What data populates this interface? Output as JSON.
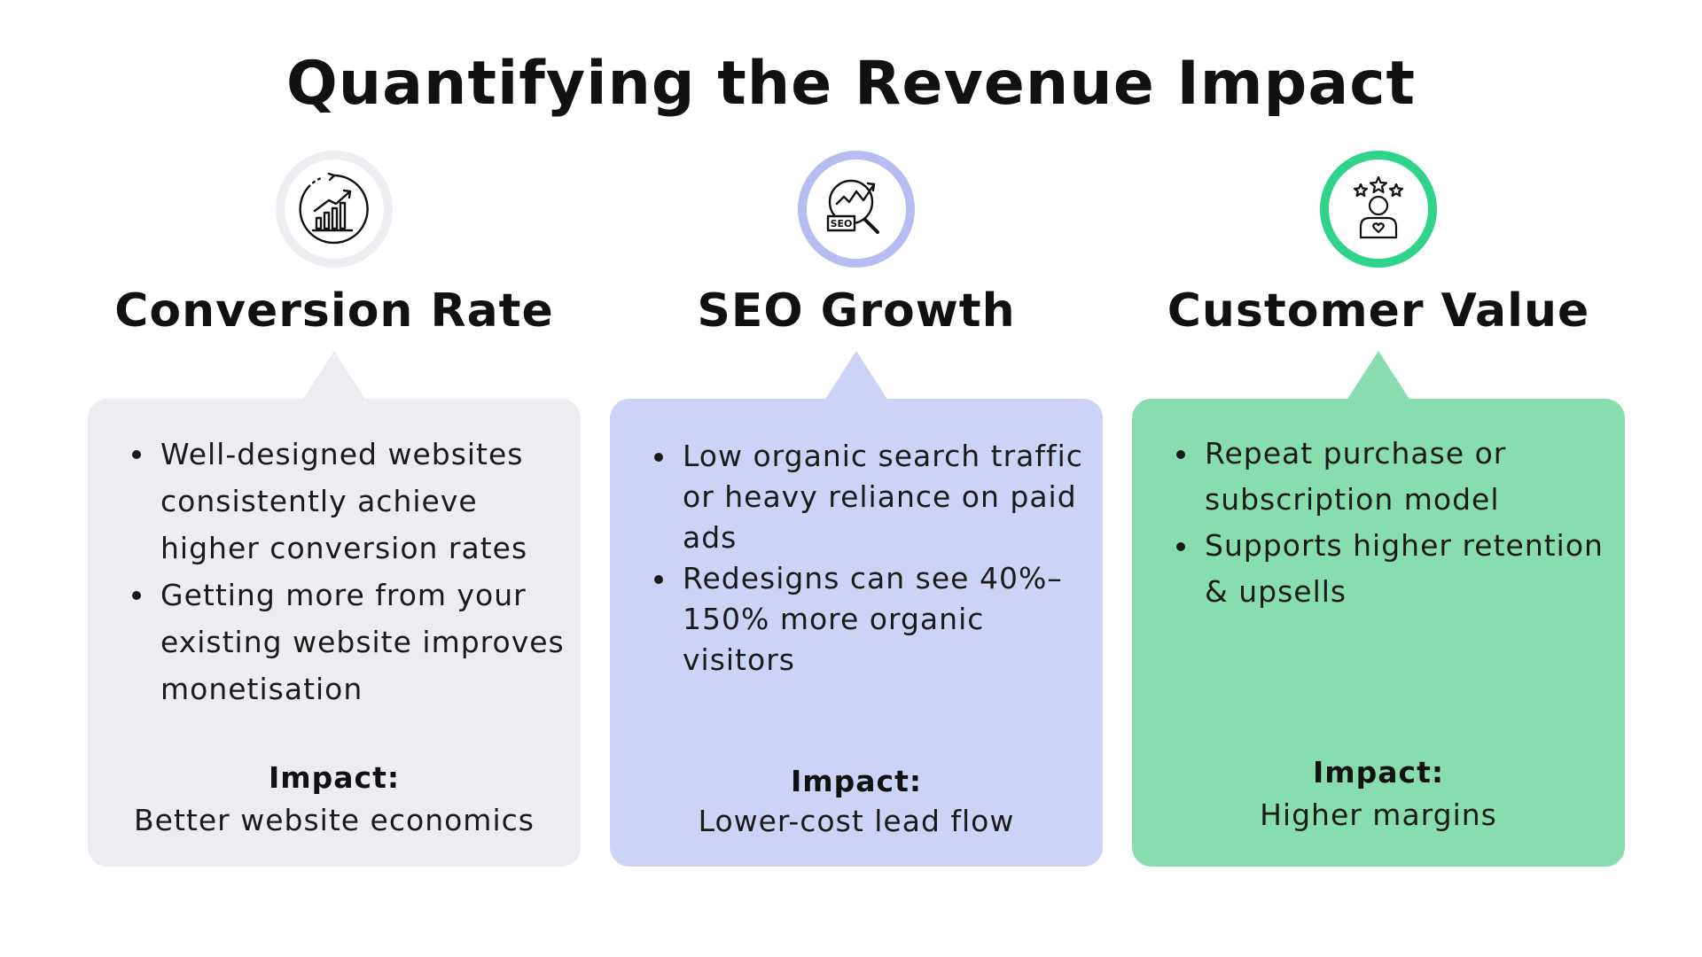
{
  "title": "Quantifying the Revenue Impact",
  "columns": [
    {
      "icon": "growth-chart-icon",
      "heading": "Conversion Rate",
      "accent_color": "#eeedf2",
      "card_color": "#edecf1",
      "bullets": [
        "Well-designed websites consistently achieve higher conversion rates",
        "Getting more from your existing website improves monetisation"
      ],
      "impact_label": "Impact:",
      "impact_value": "Better website economics"
    },
    {
      "icon": "seo-magnifier-icon",
      "heading": "SEO Growth",
      "accent_color": "#b7bdf2",
      "card_color": "#cdd3f6",
      "bullets": [
        "Low organic search traffic or heavy reliance on paid ads",
        "Redesigns can see 40%–150% more organic visitors"
      ],
      "impact_label": "Impact:",
      "impact_value": "Lower-cost lead flow"
    },
    {
      "icon": "customer-rating-icon",
      "heading": "Customer Value",
      "accent_color": "#2fd48a",
      "card_color": "#88ddae",
      "bullets": [
        "Repeat purchase or subscription model",
        "Supports higher retention & upsells"
      ],
      "impact_label": "Impact:",
      "impact_value": "Higher margins"
    }
  ]
}
